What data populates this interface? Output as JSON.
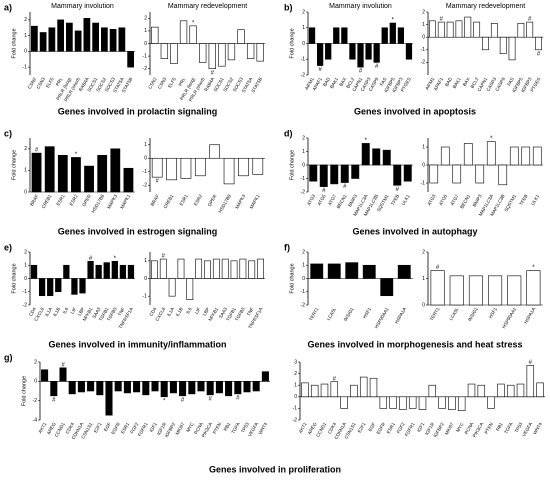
{
  "panels": [
    {
      "label": "a)",
      "caption": "Genes involved in prolactin signaling"
    },
    {
      "label": "b)",
      "caption": "Genes involved in apoptosis"
    },
    {
      "label": "c)",
      "caption": "Genes involved in estrogen signaling"
    },
    {
      "label": "d)",
      "caption": "Genes involved in autophagy"
    },
    {
      "label": "e)",
      "caption": "Genes involved in immunity/inflammation"
    },
    {
      "label": "f)",
      "caption": "Genes involved in morphogenesis and heat stress"
    },
    {
      "label": "g)",
      "caption": "Genes involved in proliferation"
    }
  ],
  "chart_data": [
    {
      "type": "bar",
      "title": "Mammary involution",
      "ylabel": "Fold change",
      "color": "#000000",
      "categories": [
        "CSN2",
        "CSN3",
        "ELF5",
        "PRL",
        "PRLR (long)",
        "PRLR (short)",
        "RAB4A",
        "SOCS1",
        "SOCS2",
        "SOCS3",
        "STAT5A",
        "STAT5B"
      ],
      "values": [
        1.6,
        1.2,
        1.5,
        2.0,
        1.8,
        1.3,
        2.1,
        1.8,
        1.5,
        1.4,
        1.5,
        -1.0
      ],
      "markers": [
        null,
        null,
        null,
        null,
        null,
        null,
        null,
        null,
        null,
        null,
        null,
        null
      ],
      "ylim": [
        -1.5,
        2.5
      ],
      "yticks": [
        -1,
        0,
        1,
        2
      ]
    },
    {
      "type": "bar",
      "title": "Mammary redevelopment",
      "color": "#ffffff",
      "categories": [
        "CSN2",
        "CSN3",
        "ELF5",
        "PRL",
        "PRLR (long)",
        "PRLR (short)",
        "RAB4A",
        "SOCS1",
        "SOCS2",
        "SOCS3",
        "STAT5A",
        "STAT5B"
      ],
      "values": [
        1.3,
        -1.2,
        -1.6,
        1.8,
        1.4,
        -1.5,
        -2.0,
        -1.8,
        -1.3,
        1.1,
        -1.2,
        -1.4
      ],
      "markers": [
        null,
        null,
        null,
        null,
        "*",
        null,
        "#",
        null,
        null,
        null,
        null,
        null
      ],
      "ylim": [
        -2.5,
        2.5
      ],
      "yticks": [
        -2,
        -1,
        0,
        1,
        2
      ]
    },
    {
      "type": "bar",
      "title": "Mammary involution",
      "ylabel": "Fold change",
      "color": "#000000",
      "categories": [
        "AIFM1",
        "APAF1",
        "BAD",
        "BAK1",
        "BAX",
        "BCL2",
        "CAPN1",
        "CASP3",
        "CASP9",
        "FAS",
        "IGFBP5",
        "IGFBP3",
        "PTGES"
      ],
      "values": [
        1.0,
        -1.4,
        -1.0,
        1.0,
        1.0,
        -1.0,
        -1.5,
        -1.0,
        -1.2,
        1.0,
        1.3,
        1.0,
        -1.0
      ],
      "markers": [
        null,
        "#",
        null,
        null,
        null,
        null,
        "#",
        null,
        "#",
        null,
        "*",
        null,
        null
      ],
      "ylim": [
        -2,
        2
      ],
      "yticks": [
        -2,
        -1,
        0,
        1,
        2
      ]
    },
    {
      "type": "bar",
      "title": "Mammary redevelopment",
      "color": "#ffffff",
      "categories": [
        "AIFM1",
        "APAF1",
        "BAD",
        "BAK1",
        "BAX",
        "BCL2",
        "CAPN1",
        "CASP3",
        "CASP9",
        "FAS",
        "IGFBP5",
        "IGFBP3",
        "PTGES"
      ],
      "values": [
        1.3,
        1.2,
        1.2,
        1.3,
        1.6,
        1.2,
        -1.0,
        1.1,
        -1.3,
        -1.8,
        1.1,
        1.2,
        -1.0
      ],
      "markers": [
        null,
        "#",
        null,
        null,
        null,
        null,
        null,
        null,
        null,
        null,
        null,
        "#",
        "#"
      ],
      "ylim": [
        -3,
        2
      ],
      "yticks": [
        -2,
        -1,
        0,
        1,
        2
      ]
    },
    {
      "type": "bar",
      "ylabel": "Fold change",
      "color": "#000000",
      "categories": [
        "BRAF",
        "CREB1",
        "ESR1",
        "ESR2",
        "GPER",
        "HSD17B8",
        "MAPK3",
        "MAPK1"
      ],
      "values": [
        1.8,
        2.1,
        1.7,
        1.6,
        1.2,
        1.7,
        2.0,
        1.1
      ],
      "markers": [
        "#",
        null,
        null,
        "*",
        null,
        null,
        null,
        null
      ],
      "ylim": [
        0,
        2.5
      ],
      "yticks": [
        0,
        1,
        2
      ]
    },
    {
      "type": "bar",
      "color": "#ffffff",
      "categories": [
        "BRAF",
        "CREB1",
        "ESR1",
        "ESR2",
        "GPER",
        "HSD17B8",
        "MAPK3",
        "MAPK1"
      ],
      "values": [
        -1.4,
        -1.6,
        -1.5,
        -1.3,
        1.0,
        -1.9,
        -1.3,
        -1.2
      ],
      "markers": [
        "#",
        null,
        null,
        null,
        null,
        null,
        null,
        null
      ],
      "ylim": [
        -2.5,
        1.5
      ],
      "yticks": [
        -2,
        -1,
        0,
        1
      ]
    },
    {
      "type": "bar",
      "ylabel": "Fold change",
      "color": "#000000",
      "categories": [
        "ATG3",
        "ATG5",
        "ATG7",
        "BECN1",
        "BNIP3",
        "MAP1LC3A",
        "MAP1LC3B",
        "SQSTM1",
        "TFEB",
        "ULK1"
      ],
      "values": [
        -1.2,
        -1.6,
        -1.4,
        -1.3,
        -1.0,
        1.6,
        1.2,
        1.1,
        -1.5,
        -1.2
      ],
      "markers": [
        null,
        "#",
        null,
        "#",
        null,
        "*",
        null,
        null,
        "#",
        null
      ],
      "ylim": [
        -2,
        2
      ],
      "yticks": [
        -2,
        -1,
        0,
        1,
        2
      ]
    },
    {
      "type": "bar",
      "color": "#ffffff",
      "categories": [
        "ATG3",
        "ATG5",
        "ATG7",
        "BECN1",
        "BNIP3",
        "MAP1LC3A",
        "MAP1LC3B",
        "SQSTM1",
        "TFEB",
        "ULK1"
      ],
      "values": [
        -1.0,
        1.0,
        -1.0,
        1.2,
        -1.0,
        1.3,
        -1.1,
        1.0,
        1.0,
        1.0
      ],
      "markers": [
        null,
        null,
        null,
        null,
        null,
        "*",
        null,
        null,
        null,
        null
      ],
      "ylim": [
        -1.5,
        1.5
      ],
      "yticks": [
        -1,
        0,
        1
      ]
    },
    {
      "type": "bar",
      "ylabel": "Fold change",
      "color": "#000000",
      "categories": [
        "CD4",
        "CXCL8",
        "IL1A",
        "IL1B",
        "IL6",
        "LIF",
        "LBP",
        "NFKB1",
        "SAA3",
        "TGFB1",
        "TGFB3",
        "TNF",
        "TNFRSF1A"
      ],
      "values": [
        1.0,
        -1.3,
        -1.3,
        -1.0,
        1.0,
        -1.2,
        -1.1,
        1.3,
        1.0,
        1.2,
        1.3,
        1.0,
        1.0
      ],
      "markers": [
        null,
        null,
        null,
        null,
        null,
        null,
        null,
        "#",
        null,
        null,
        "*",
        null,
        null
      ],
      "ylim": [
        -2,
        2
      ],
      "yticks": [
        -2,
        -1,
        0,
        1,
        2
      ]
    },
    {
      "type": "bar",
      "color": "#ffffff",
      "categories": [
        "CD4",
        "CXCL8",
        "IL1A",
        "IL1B",
        "IL6",
        "LIF",
        "LBP",
        "NFKB1",
        "SAA3",
        "TGFB1",
        "TGFB3",
        "TNF",
        "TNFRSF1A"
      ],
      "values": [
        1.0,
        1.1,
        -1.0,
        1.1,
        -1.2,
        1.1,
        1.0,
        1.1,
        1.1,
        1.0,
        1.1,
        1.0,
        1.1
      ],
      "markers": [
        null,
        "#",
        null,
        null,
        null,
        null,
        null,
        null,
        null,
        null,
        null,
        null,
        null
      ],
      "ylim": [
        -1.5,
        1.5
      ],
      "yticks": [
        -1,
        0,
        1
      ]
    },
    {
      "type": "bar",
      "ylabel": "Fold change",
      "color": "#000000",
      "categories": [
        "TERT1",
        "LCA5L",
        "INSIG1",
        "HSF1",
        "HSP90AA1",
        "HSPA1A"
      ],
      "values": [
        1.1,
        1.1,
        1.2,
        1.0,
        -1.3,
        1.0
      ],
      "markers": [
        null,
        null,
        null,
        null,
        null,
        null
      ],
      "ylim": [
        -2,
        2
      ],
      "yticks": [
        -2,
        -1,
        0,
        1,
        2
      ]
    },
    {
      "type": "bar",
      "color": "#ffffff",
      "categories": [
        "TERT1",
        "LCA5L",
        "INSIG1",
        "HSF1",
        "HSP90AA1",
        "HSPA1A"
      ],
      "values": [
        1.3,
        1.1,
        1.1,
        1.1,
        1.1,
        1.3
      ],
      "markers": [
        "#",
        null,
        null,
        null,
        null,
        "*"
      ],
      "ylim": [
        0,
        2
      ],
      "yticks": [
        0,
        1,
        2
      ]
    },
    {
      "type": "bar",
      "ylabel": "Fold change",
      "color": "#000000",
      "categories": [
        "AKT1",
        "AREG",
        "CCND1",
        "CDK4",
        "CDKN1A",
        "CSN1S1",
        "E2F1",
        "EGF",
        "EGFR",
        "ESR1",
        "FGF2",
        "FGFR1",
        "IGF1",
        "IGF1R",
        "IGFBP2",
        "MKI67",
        "MYC",
        "PCNA",
        "PIK3CA",
        "PTEN",
        "RB1",
        "TGFA",
        "TP53",
        "VEGFA",
        "WNT4"
      ],
      "values": [
        1.2,
        -1.5,
        1.4,
        -1.3,
        -1.1,
        -1.0,
        -1.4,
        -3.5,
        -1.0,
        -1.2,
        -1.1,
        -1.4,
        -1.0,
        -1.6,
        -1.2,
        -1.5,
        -1.3,
        -1.0,
        -1.4,
        -1.2,
        -1.5,
        -1.3,
        -1.1,
        -1.0,
        1.0
      ],
      "markers": [
        null,
        "#",
        "#",
        null,
        null,
        null,
        null,
        null,
        null,
        null,
        null,
        null,
        null,
        "*",
        null,
        "#",
        null,
        null,
        "#",
        null,
        null,
        "#",
        null,
        null,
        null
      ],
      "ylim": [
        -4,
        2
      ],
      "yticks": [
        -4,
        -2,
        0,
        2
      ]
    },
    {
      "type": "bar",
      "color": "#ffffff",
      "categories": [
        "AKT1",
        "AREG",
        "CCND1",
        "CDK4",
        "CDKN1A",
        "CSN1S1",
        "E2F1",
        "EGF",
        "EGFR",
        "ESR1",
        "FGF2",
        "FGFR1",
        "IGF1",
        "IGF1R",
        "IGFBP2",
        "MKI67",
        "MYC",
        "PCNA",
        "PIK3CA",
        "PTEN",
        "RB1",
        "TGFA",
        "TP53",
        "VEGFA",
        "WNT4"
      ],
      "values": [
        1.2,
        1.0,
        1.1,
        1.3,
        -1.0,
        1.0,
        1.7,
        1.6,
        -1.0,
        -1.0,
        -1.1,
        -1.0,
        -1.1,
        1.0,
        -1.0,
        -1.1,
        -1.2,
        1.1,
        1.0,
        -1.0,
        1.1,
        1.0,
        1.1,
        2.7,
        1.2
      ],
      "markers": [
        null,
        null,
        null,
        "#",
        null,
        null,
        null,
        null,
        null,
        null,
        null,
        null,
        null,
        null,
        null,
        null,
        null,
        null,
        null,
        null,
        null,
        null,
        null,
        "#",
        null
      ],
      "ylim": [
        -2,
        3
      ],
      "yticks": [
        -2,
        -1,
        0,
        1,
        2,
        3
      ]
    }
  ]
}
